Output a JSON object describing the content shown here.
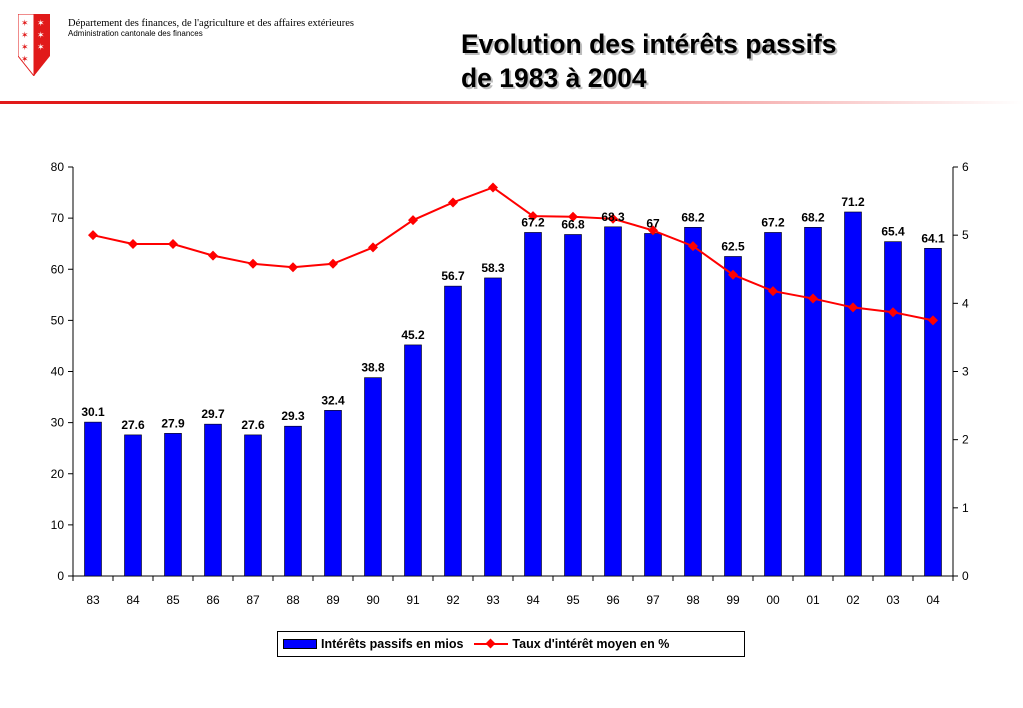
{
  "header": {
    "dept_line1": "Département des finances, de l'agriculture et des affaires extérieures",
    "dept_line2": "Administration cantonale des finances",
    "title_line1": "Evolution des intérêts passifs",
    "title_line2": "de 1983 à 2004"
  },
  "colors": {
    "bars": "#0000ff",
    "line": "#ff0000",
    "accent": "#e11a1a"
  },
  "chart_data": {
    "type": "bar+line",
    "categories": [
      "83",
      "84",
      "85",
      "86",
      "87",
      "88",
      "89",
      "90",
      "91",
      "92",
      "93",
      "94",
      "95",
      "96",
      "97",
      "98",
      "99",
      "00",
      "01",
      "02",
      "03",
      "04"
    ],
    "series": [
      {
        "name": "Intérêts passifs en mios",
        "type": "bar",
        "axis": "left",
        "values": [
          30.1,
          27.6,
          27.9,
          29.7,
          27.6,
          29.3,
          32.4,
          38.8,
          45.2,
          56.7,
          58.3,
          67.2,
          66.8,
          68.3,
          67,
          68.2,
          62.5,
          67.2,
          68.2,
          71.2,
          65.4,
          64.1
        ],
        "labels": [
          "30.1",
          "27.6",
          "27.9",
          "29.7",
          "27.6",
          "29.3",
          "32.4",
          "38.8",
          "45.2",
          "56.7",
          "58.3",
          "67.2",
          "66.8",
          "68.3",
          "67",
          "68.2",
          "62.5",
          "67.2",
          "68.2",
          "71.2",
          "65.4",
          "64.1"
        ]
      },
      {
        "name": "Taux d'intérêt moyen en %",
        "type": "line",
        "axis": "right",
        "values": [
          5.0,
          4.87,
          4.87,
          4.7,
          4.58,
          4.53,
          4.58,
          4.82,
          5.22,
          5.48,
          5.7,
          5.28,
          5.27,
          5.24,
          5.07,
          4.84,
          4.42,
          4.18,
          4.07,
          3.94,
          3.87,
          3.75
        ]
      }
    ],
    "y_left": {
      "min": 0,
      "max": 80,
      "ticks": [
        "0",
        "10",
        "20",
        "30",
        "40",
        "50",
        "60",
        "70",
        "80"
      ]
    },
    "y_right": {
      "min": 0,
      "max": 6,
      "ticks": [
        "0",
        "1",
        "2",
        "3",
        "4",
        "5",
        "6"
      ]
    },
    "legend": {
      "position": "bottom",
      "items": [
        "Intérêts passifs en mios",
        "Taux d'intérêt moyen en %"
      ]
    },
    "grid": false
  }
}
